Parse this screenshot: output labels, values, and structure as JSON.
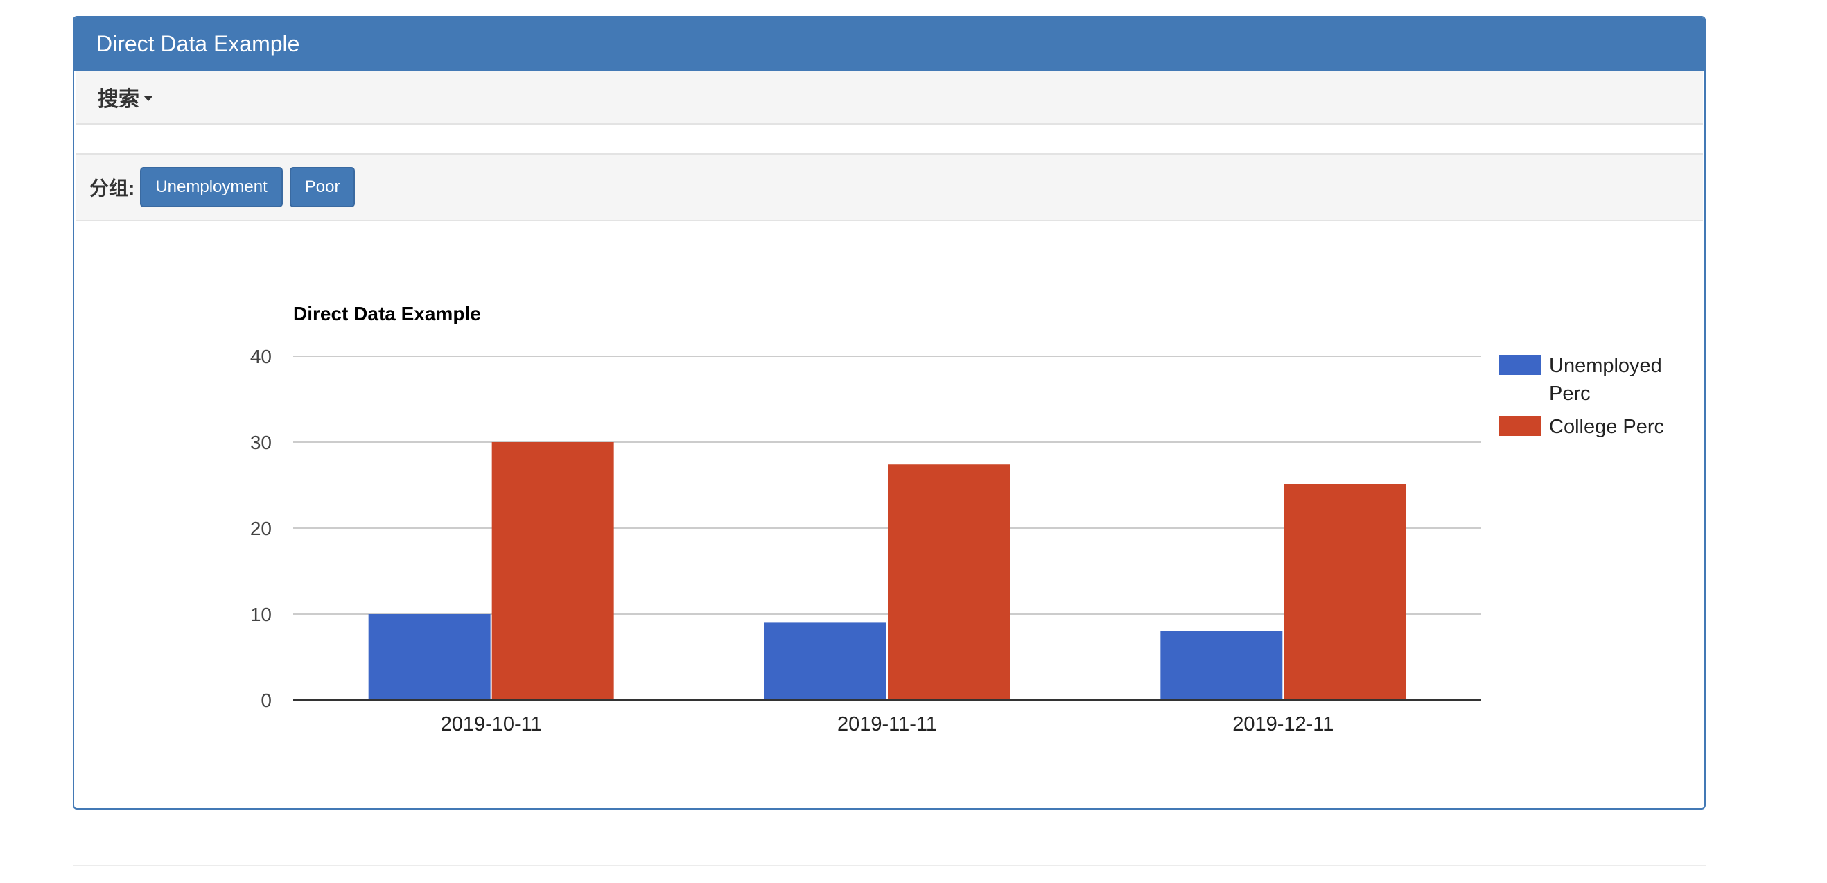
{
  "panel": {
    "title": "Direct Data Example"
  },
  "search": {
    "label": "搜索"
  },
  "group": {
    "label": "分组:",
    "buttons": [
      "Unemployment",
      "Poor"
    ]
  },
  "colors": {
    "primary": "#4379b5",
    "series1": "#3c66c6",
    "series2": "#cc4527"
  },
  "chart_data": {
    "type": "bar",
    "title": "Direct Data Example",
    "categories": [
      "2019-10-11",
      "2019-11-11",
      "2019-12-11"
    ],
    "series": [
      {
        "name": "Unemployed Perc",
        "values": [
          10,
          9,
          8
        ]
      },
      {
        "name": "College Perc",
        "values": [
          30,
          27.4,
          25.1
        ]
      }
    ],
    "ylim": [
      0,
      40
    ],
    "yticks": [
      0,
      10,
      20,
      30,
      40
    ],
    "grid": true,
    "legend_position": "right"
  }
}
